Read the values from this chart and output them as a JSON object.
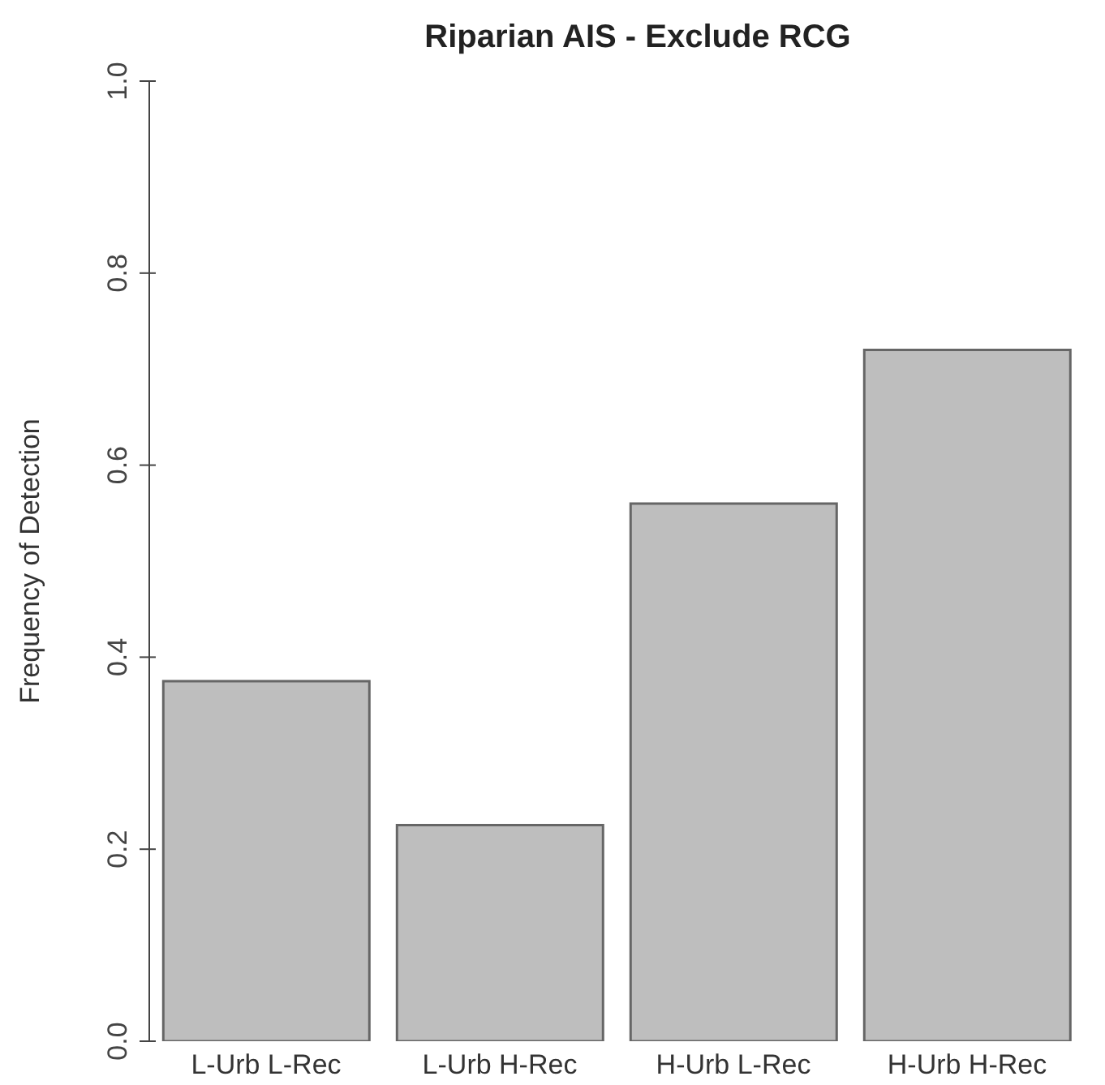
{
  "chart_data": {
    "type": "bar",
    "title": "Riparian AIS - Exclude RCG",
    "ylabel": "Frequency of Detection",
    "categories": [
      "L-Urb L-Rec",
      "L-Urb H-Rec",
      "H-Urb L-Rec",
      "H-Urb H-Rec"
    ],
    "values": [
      0.375,
      0.225,
      0.56,
      0.72
    ],
    "color": "#bebebe",
    "ylim": [
      0,
      1
    ],
    "yticks": [
      {
        "value": 0,
        "label": "0.0"
      },
      0.2,
      0.4,
      0.6,
      0.8,
      {
        "value": 1,
        "label": "1.0"
      }
    ],
    "grid": false
  }
}
